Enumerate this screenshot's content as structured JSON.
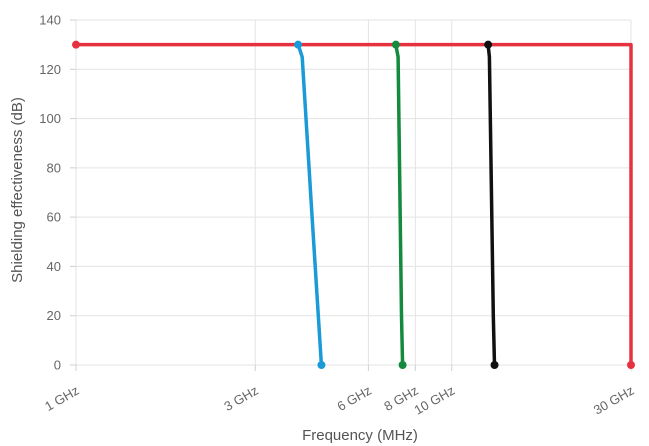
{
  "chart_data": {
    "type": "line",
    "title": "",
    "xlabel": "Frequency (MHz)",
    "ylabel": "Shielding effectiveness (dB)",
    "x_scale": "log",
    "x_range": [
      1000,
      30000
    ],
    "ylim": [
      0,
      140
    ],
    "y_ticks": [
      0,
      20,
      40,
      60,
      80,
      100,
      120,
      140
    ],
    "x_ticks": [
      {
        "value": 1000,
        "label": "1 GHz"
      },
      {
        "value": 3000,
        "label": "3 GHz"
      },
      {
        "value": 6000,
        "label": "6 GHz"
      },
      {
        "value": 8000,
        "label": "8 GHz"
      },
      {
        "value": 10000,
        "label": "10 GHz"
      },
      {
        "value": 30000,
        "label": "30 GHz"
      }
    ],
    "grid": true,
    "legend": "none",
    "series": [
      {
        "color": "#1a9ad6",
        "points": [
          {
            "x": 3900,
            "y": 130
          },
          {
            "x": 4000,
            "y": 125
          },
          {
            "x": 4250,
            "y": 60
          },
          {
            "x": 4500,
            "y": 0
          }
        ]
      },
      {
        "color": "#138a3e",
        "points": [
          {
            "x": 7100,
            "y": 130
          },
          {
            "x": 7200,
            "y": 125
          },
          {
            "x": 7350,
            "y": 20
          },
          {
            "x": 7400,
            "y": 0
          }
        ]
      },
      {
        "color": "#111111",
        "points": [
          {
            "x": 12500,
            "y": 130
          },
          {
            "x": 12600,
            "y": 125
          },
          {
            "x": 12900,
            "y": 20
          },
          {
            "x": 13000,
            "y": 0
          }
        ]
      },
      {
        "color": "#e63240",
        "points": [
          {
            "x": 1000,
            "y": 130
          },
          {
            "x": 30000,
            "y": 130
          },
          {
            "x": 30000,
            "y": 0
          }
        ]
      }
    ]
  }
}
